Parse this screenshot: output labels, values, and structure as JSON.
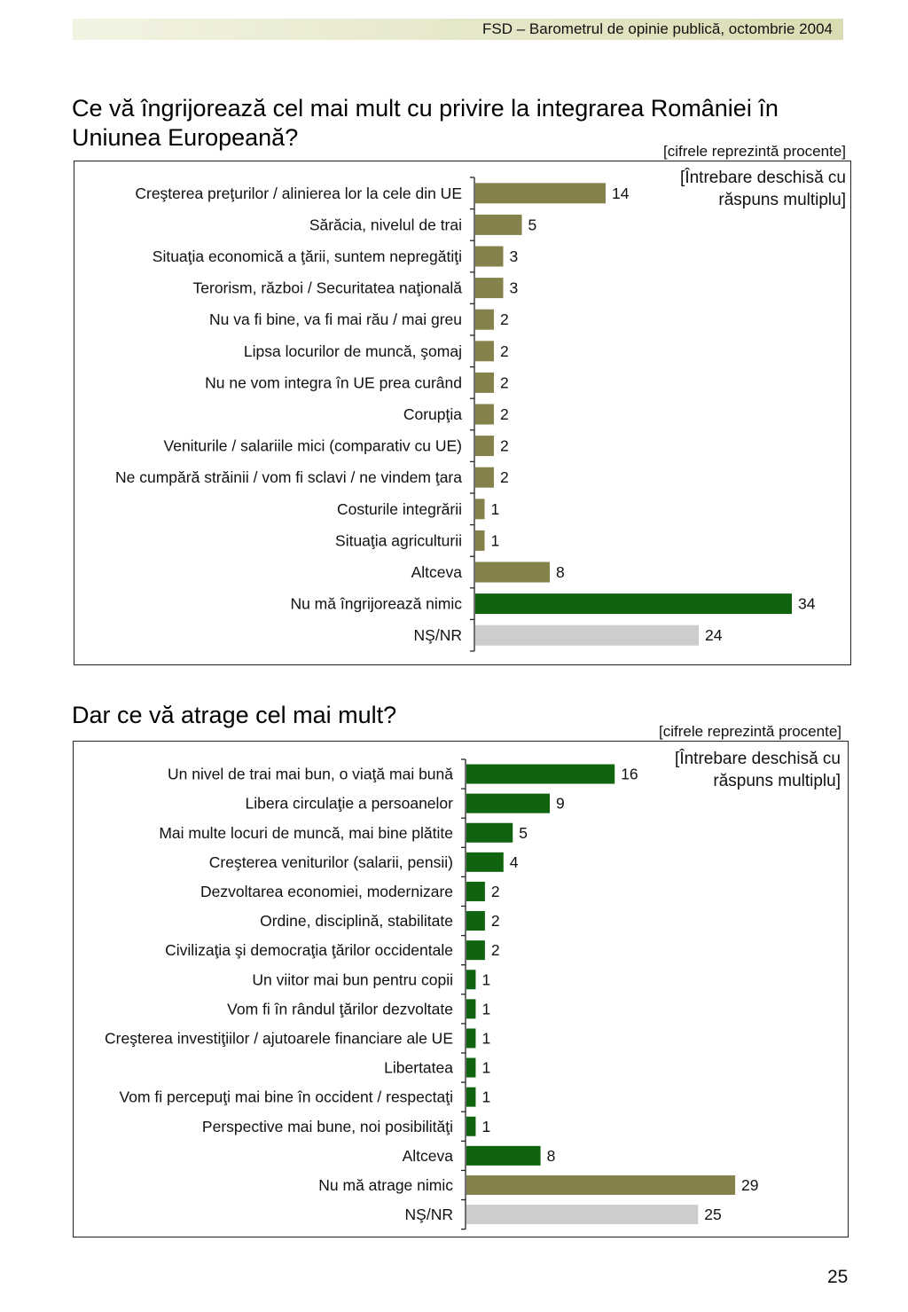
{
  "header": {
    "text": "FSD  –  Barometrul de opinie publică, octombrie 2004"
  },
  "page_number": "25",
  "chart_data": [
    {
      "type": "bar",
      "title": "Ce vă îngrijorează cel mai mult cu privire la integrarea României în Uniunea Europeană?",
      "note": "[cifrele reprezintă procente]",
      "annotation": "[Întrebare deschisă cu răspuns multiplu]",
      "orientation": "horizontal",
      "categories": [
        "Creşterea preţurilor / alinierea lor la cele din UE",
        "Sărăcia, nivelul de trai",
        "Situaţia economică a ţării, suntem nepregătiţi",
        "Terorism, război / Securitatea naţională",
        "Nu va fi bine, va fi mai rău / mai greu",
        "Lipsa locurilor de muncă, şomaj",
        "Nu ne vom integra în UE prea curând",
        "Corupţia",
        "Veniturile / salariile mici (comparativ cu UE)",
        "Ne cumpără străinii / vom fi sclavi / ne vindem ţara",
        "Costurile integrării",
        "Situaţia agriculturii",
        "Altceva",
        "Nu mă îngrijorează nimic",
        "NŞ/NR"
      ],
      "values": [
        14,
        5,
        3,
        3,
        2,
        2,
        2,
        2,
        2,
        2,
        1,
        1,
        8,
        34,
        24
      ],
      "colors": [
        "#84824a",
        "#84824a",
        "#84824a",
        "#84824a",
        "#84824a",
        "#84824a",
        "#84824a",
        "#84824a",
        "#84824a",
        "#84824a",
        "#84824a",
        "#84824a",
        "#84824a",
        "#106410",
        "#cdcdcd"
      ]
    },
    {
      "type": "bar",
      "title": "Dar ce vă atrage cel mai mult?",
      "note": "[cifrele reprezintă procente]",
      "annotation": "[Întrebare deschisă cu răspuns multiplu]",
      "orientation": "horizontal",
      "categories": [
        "Un nivel de trai mai bun, o viaţă mai bună",
        "Libera circulaţie a persoanelor",
        "Mai multe locuri de muncă, mai bine plătite",
        "Creşterea veniturilor (salarii, pensii)",
        "Dezvoltarea economiei, modernizare",
        "Ordine, disciplină, stabilitate",
        "Civilizaţia şi democraţia ţărilor occidentale",
        "Un viitor mai bun pentru copii",
        "Vom fi în rândul ţărilor dezvoltate",
        "Creşterea investiţiilor / ajutoarele financiare ale UE",
        "Libertatea",
        "Vom fi percepuţi mai bine în occident / respectaţi",
        "Perspective mai bune, noi posibilităţi",
        "Altceva",
        "Nu mă atrage nimic",
        "NŞ/NR"
      ],
      "values": [
        16,
        9,
        5,
        4,
        2,
        2,
        2,
        1,
        1,
        1,
        1,
        1,
        1,
        8,
        29,
        25
      ],
      "colors": [
        "#106410",
        "#106410",
        "#106410",
        "#106410",
        "#106410",
        "#106410",
        "#106410",
        "#106410",
        "#106410",
        "#106410",
        "#106410",
        "#106410",
        "#106410",
        "#106410",
        "#84824a",
        "#cdcdcd"
      ]
    }
  ]
}
